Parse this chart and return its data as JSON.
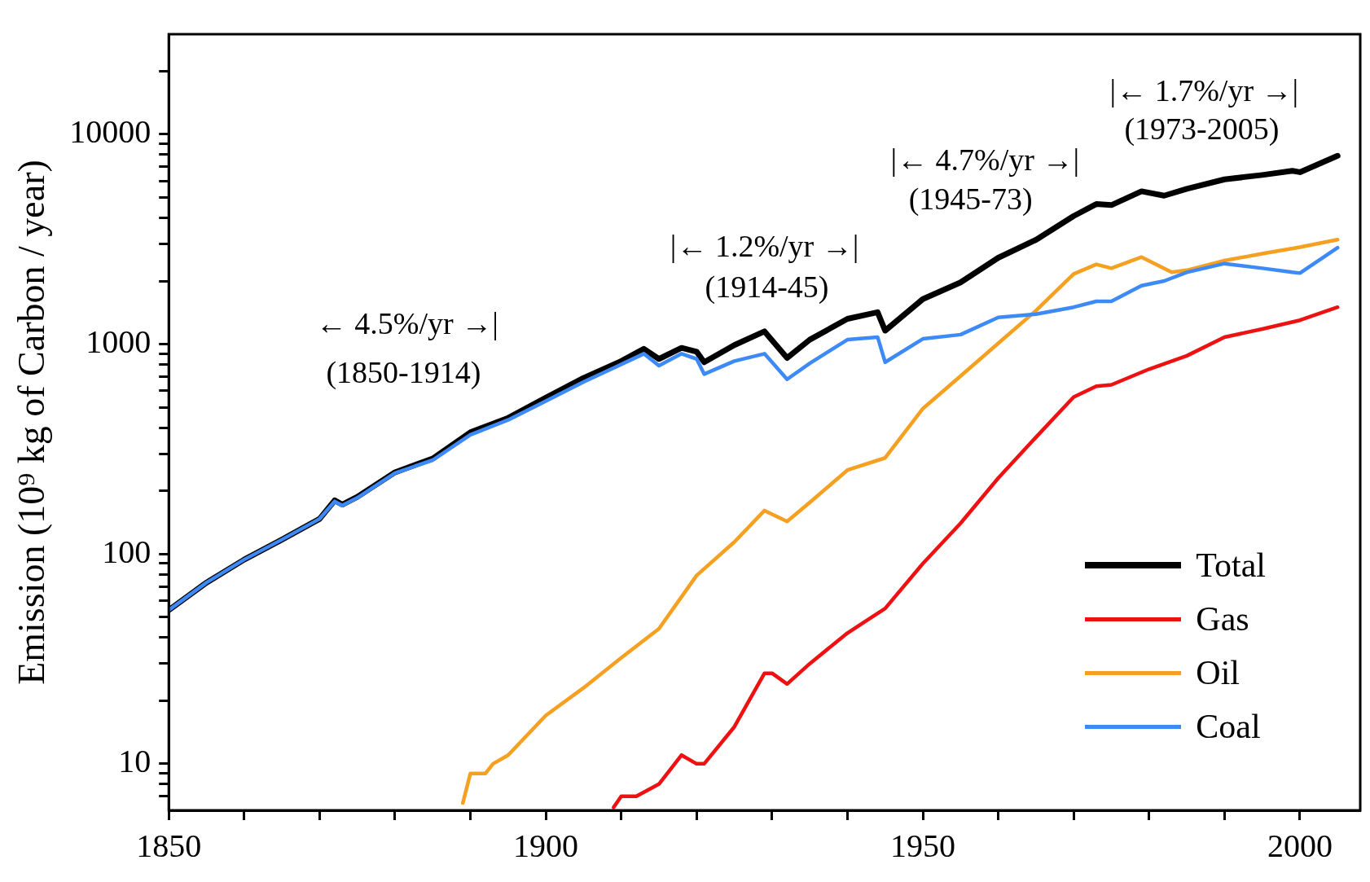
{
  "chart_data": {
    "type": "line",
    "ylabel": "Emission (10⁹ kg of Carbon / year)",
    "log": "y",
    "xlim": [
      1850,
      2008
    ],
    "ylim": [
      6,
      30000
    ],
    "xticks": [
      1850,
      {
        "value": 1860,
        "label": null
      },
      {
        "value": 1870,
        "label": null
      },
      {
        "value": 1880,
        "label": null
      },
      {
        "value": 1890,
        "label": null
      },
      1900,
      {
        "value": 1910,
        "label": null
      },
      {
        "value": 1920,
        "label": null
      },
      {
        "value": 1930,
        "label": null
      },
      {
        "value": 1940,
        "label": null
      },
      1950,
      {
        "value": 1960,
        "label": null
      },
      {
        "value": 1970,
        "label": null
      },
      {
        "value": 1980,
        "label": null
      },
      {
        "value": 1990,
        "label": null
      },
      2000
    ],
    "yticks": [
      {
        "value": 7,
        "label": null
      },
      {
        "value": 8,
        "label": null
      },
      {
        "value": 9,
        "label": null
      },
      10,
      {
        "value": 20,
        "label": null
      },
      {
        "value": 30,
        "label": null
      },
      {
        "value": 40,
        "label": null
      },
      {
        "value": 50,
        "label": null
      },
      {
        "value": 60,
        "label": null
      },
      {
        "value": 70,
        "label": null
      },
      {
        "value": 80,
        "label": null
      },
      {
        "value": 90,
        "label": null
      },
      100,
      {
        "value": 200,
        "label": null
      },
      {
        "value": 300,
        "label": null
      },
      {
        "value": 400,
        "label": null
      },
      {
        "value": 500,
        "label": null
      },
      {
        "value": 600,
        "label": null
      },
      {
        "value": 700,
        "label": null
      },
      {
        "value": 800,
        "label": null
      },
      {
        "value": 900,
        "label": null
      },
      1000,
      {
        "value": 2000,
        "label": null
      },
      {
        "value": 3000,
        "label": null
      },
      {
        "value": 4000,
        "label": null
      },
      {
        "value": 5000,
        "label": null
      },
      {
        "value": 6000,
        "label": null
      },
      {
        "value": 7000,
        "label": null
      },
      {
        "value": 8000,
        "label": null
      },
      {
        "value": 9000,
        "label": null
      },
      10000,
      {
        "value": 20000,
        "label": null
      }
    ],
    "grid": false,
    "legend": "bottom right",
    "marker": "none",
    "line_style": "solid",
    "series": [
      {
        "name": "Total",
        "color": "#000000",
        "x": [
          1850,
          1855,
          1860,
          1865,
          1870,
          1872,
          1873,
          1875,
          1880,
          1885,
          1890,
          1895,
          1900,
          1905,
          1910,
          1913,
          1915,
          1918,
          1920,
          1921,
          1925,
          1929,
          1932,
          1935,
          1940,
          1944,
          1945,
          1950,
          1955,
          1960,
          1965,
          1970,
          1973,
          1975,
          1979,
          1982,
          1985,
          1990,
          1995,
          1999,
          2000,
          2005
        ],
        "values": [
          54,
          73,
          94,
          117,
          147,
          180,
          172,
          187,
          245,
          285,
          380,
          445,
          555,
          690,
          830,
          950,
          850,
          960,
          920,
          820,
          990,
          1150,
          860,
          1050,
          1320,
          1420,
          1160,
          1640,
          1970,
          2580,
          3140,
          4080,
          4650,
          4600,
          5350,
          5100,
          5500,
          6100,
          6400,
          6700,
          6600,
          7900
        ]
      },
      {
        "name": "Gas",
        "color": "#ee1111",
        "x": [
          1909,
          1910,
          1912,
          1915,
          1918,
          1920,
          1921,
          1925,
          1929,
          1930,
          1932,
          1935,
          1940,
          1945,
          1950,
          1955,
          1960,
          1965,
          1970,
          1973,
          1975,
          1980,
          1985,
          1990,
          1995,
          2000,
          2005
        ],
        "values": [
          6.2,
          7,
          7,
          8,
          11,
          10,
          10,
          15,
          27,
          27,
          24,
          30,
          42,
          55,
          90,
          140,
          230,
          360,
          560,
          630,
          640,
          760,
          880,
          1080,
          1180,
          1300,
          1500
        ]
      },
      {
        "name": "Oil",
        "color": "#f5a020",
        "x": [
          1889,
          1890,
          1892,
          1893,
          1895,
          1900,
          1905,
          1910,
          1915,
          1920,
          1925,
          1929,
          1932,
          1935,
          1940,
          1945,
          1950,
          1955,
          1960,
          1965,
          1970,
          1973,
          1975,
          1979,
          1983,
          1985,
          1990,
          1995,
          2000,
          2005
        ],
        "values": [
          6.5,
          9,
          9,
          10,
          11,
          17,
          23,
          32,
          44,
          79,
          114,
          161,
          143,
          176,
          251,
          287,
          493,
          705,
          1010,
          1445,
          2160,
          2400,
          2300,
          2600,
          2200,
          2250,
          2500,
          2700,
          2900,
          3150
        ]
      },
      {
        "name": "Coal",
        "color": "#3d8af7",
        "x": [
          1850,
          1855,
          1860,
          1865,
          1870,
          1872,
          1873,
          1875,
          1880,
          1885,
          1890,
          1895,
          1900,
          1905,
          1910,
          1913,
          1915,
          1918,
          1920,
          1921,
          1925,
          1929,
          1932,
          1935,
          1940,
          1944,
          1945,
          1950,
          1955,
          1960,
          1965,
          1970,
          1973,
          1975,
          1979,
          1982,
          1985,
          1990,
          1995,
          1999,
          2000,
          2005
        ],
        "values": [
          54,
          73,
          94,
          117,
          147,
          178,
          170,
          185,
          243,
          280,
          370,
          435,
          535,
          660,
          800,
          900,
          790,
          900,
          850,
          720,
          830,
          900,
          680,
          810,
          1050,
          1080,
          820,
          1060,
          1110,
          1340,
          1390,
          1500,
          1600,
          1600,
          1900,
          2000,
          2200,
          2420,
          2300,
          2200,
          2180,
          2880
        ]
      }
    ],
    "annotations": [
      "← 4.5%/yr →|",
      "(1850-1914)",
      "|← 1.2%/yr →|",
      "(1914-45)",
      "|← 4.7%/yr →|",
      "(1945-73)",
      "|← 1.7%/yr →|",
      "(1973-2005)"
    ]
  }
}
